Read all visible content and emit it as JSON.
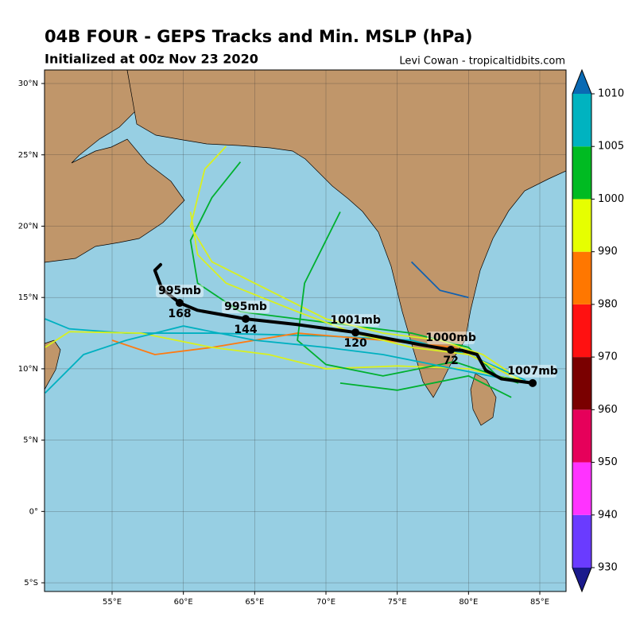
{
  "chart_data": {
    "type": "track-map",
    "title": "04B FOUR - GEPS Tracks and Min. MSLP (hPa)",
    "subtitle": "Initialized at 00z Nov 23 2020",
    "credit": "Levi Cowan - tropicaltidbits.com",
    "xlim": [
      50.26,
      86.84
    ],
    "ylim": [
      -5.61,
      30.95
    ],
    "xticks": [
      {
        "value": 55,
        "label": "55°E"
      },
      {
        "value": 60,
        "label": "60°E"
      },
      {
        "value": 65,
        "label": "65°E"
      },
      {
        "value": 70,
        "label": "70°E"
      },
      {
        "value": 75,
        "label": "75°E"
      },
      {
        "value": 80,
        "label": "80°E"
      },
      {
        "value": 85,
        "label": "85°E"
      }
    ],
    "yticks": [
      {
        "value": -5,
        "label": "5°S"
      },
      {
        "value": 0,
        "label": "0°"
      },
      {
        "value": 5,
        "label": "5°N"
      },
      {
        "value": 10,
        "label": "10°N"
      },
      {
        "value": 15,
        "label": "15°N"
      },
      {
        "value": 20,
        "label": "20°N"
      },
      {
        "value": 25,
        "label": "25°N"
      },
      {
        "value": 30,
        "label": "30°N"
      }
    ],
    "grid": true,
    "ocean_color": "#97cfe3",
    "land_color": "#c0966a",
    "tracks": [
      {
        "color": "#00b030",
        "lon": [
          84.5,
          82,
          80,
          76,
          72,
          68,
          64,
          61,
          60.5,
          62,
          64
        ],
        "lat": [
          9,
          9.5,
          11.5,
          12.5,
          13,
          13.5,
          14,
          16,
          19,
          22,
          24.5
        ]
      },
      {
        "color": "#d8f020",
        "lon": [
          84,
          81,
          78,
          74,
          70,
          66,
          62,
          60.5,
          61.5,
          63
        ],
        "lat": [
          9,
          11,
          12,
          12.5,
          13.5,
          15.5,
          17.5,
          20,
          24,
          25.6
        ]
      },
      {
        "color": "#00b0c0",
        "lon": [
          84,
          80,
          76,
          70,
          62,
          56,
          52,
          50.3
        ],
        "lat": [
          9.2,
          11,
          12,
          12.3,
          12.5,
          12.5,
          12.8,
          13.5
        ]
      },
      {
        "color": "#ff7a10",
        "lon": [
          83,
          79,
          74,
          68,
          62,
          58,
          55
        ],
        "lat": [
          9.5,
          11.5,
          12,
          12.5,
          11.5,
          11,
          12
        ]
      },
      {
        "color": "#d8f020",
        "lon": [
          84,
          80,
          75,
          70,
          66,
          62,
          57,
          52,
          50.3
        ],
        "lat": [
          9,
          10,
          10.2,
          10,
          11,
          11.5,
          12.5,
          12.6,
          11.5
        ]
      },
      {
        "color": "#00b030",
        "lon": [
          83.5,
          79,
          74,
          70,
          68,
          68.5,
          70,
          71
        ],
        "lat": [
          9,
          10.5,
          9.5,
          10.3,
          12,
          16,
          19,
          21
        ]
      },
      {
        "color": "#00b0c0",
        "lon": [
          84,
          79,
          74,
          70,
          65,
          60,
          56,
          53,
          50.3
        ],
        "lat": [
          9,
          10,
          11,
          11.5,
          12,
          13,
          12,
          11,
          8.3
        ]
      },
      {
        "color": "#d8f020",
        "lon": [
          84,
          80,
          76,
          72,
          68,
          63,
          61,
          60.5
        ],
        "lat": [
          9,
          11,
          11.5,
          12.5,
          14,
          16,
          18,
          21
        ]
      },
      {
        "color": "#1060b0",
        "lon": [
          76,
          78,
          80
        ],
        "lat": [
          17.5,
          15.5,
          15
        ]
      },
      {
        "color": "#00b030",
        "lon": [
          83,
          80,
          75,
          71
        ],
        "lat": [
          8,
          9.5,
          8.5,
          9
        ]
      }
    ],
    "mean_track": {
      "color": "#000000",
      "lon": [
        84.5,
        82.3,
        81.2,
        80.6,
        79.5,
        78.76,
        76.47,
        72.07,
        68,
        64.37,
        61,
        59.74,
        58.5,
        58.0,
        58.4
      ],
      "lat": [
        9.0,
        9.3,
        9.9,
        11.0,
        11.3,
        11.33,
        11.72,
        12.55,
        13.1,
        13.5,
        14.1,
        14.62,
        15.6,
        16.9,
        17.3
      ]
    },
    "hour_labels": {
      "hours": [
        72,
        120,
        144,
        168
      ],
      "lon": [
        78.76,
        72.07,
        64.37,
        59.74
      ],
      "lat": [
        11.33,
        12.55,
        13.5,
        14.62
      ]
    },
    "pressure_labels": {
      "text": [
        "1007mb",
        "1000mb",
        "1001mb",
        "995mb",
        "995mb"
      ],
      "lon": [
        84.5,
        78.76,
        72.07,
        64.37,
        59.74
      ],
      "lat": [
        9.0,
        11.33,
        12.55,
        13.5,
        14.62
      ]
    },
    "colorbar": {
      "levels": [
        930,
        940,
        950,
        960,
        970,
        980,
        990,
        1000,
        1005,
        1010
      ],
      "colors": [
        "#6a3bff",
        "#ff33ff",
        "#e6005a",
        "#7a0000",
        "#ff1111",
        "#ff7700",
        "#e6ff00",
        "#00bb22",
        "#00b3c0"
      ],
      "under_color": "#1a1a8c",
      "over_color": "#0a6ab3"
    }
  }
}
